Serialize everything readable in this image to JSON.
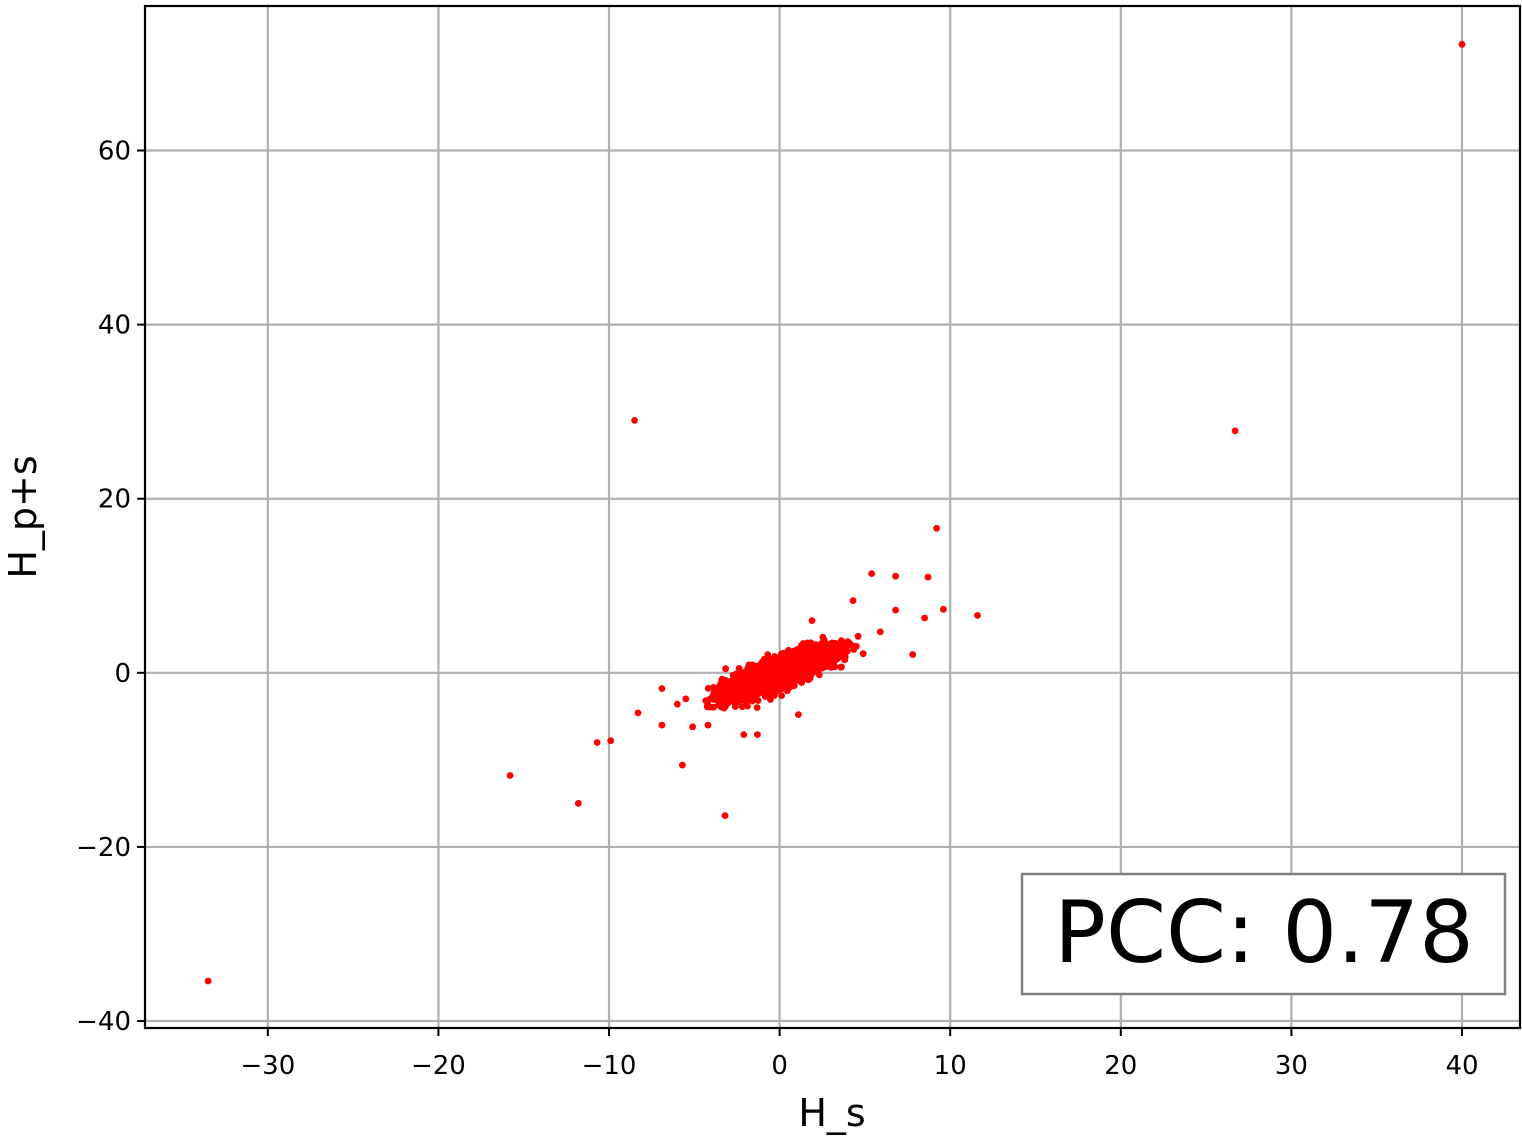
{
  "chart_data": {
    "type": "scatter",
    "title": "",
    "xlabel": "H_s",
    "ylabel": "H_p+s",
    "xlim": [
      -37.2,
      43.4
    ],
    "ylim": [
      -40.8,
      76.6
    ],
    "xticks": [
      -30,
      -20,
      -10,
      0,
      10,
      20,
      30,
      40
    ],
    "yticks": [
      -40,
      -20,
      0,
      20,
      40,
      60
    ],
    "grid": true,
    "marker_color": "#ff0000",
    "annotation": {
      "text": "PCC: 0.78",
      "placement": "bottom-right"
    },
    "series": [
      {
        "points": [
          [
            40.0,
            72.2
          ],
          [
            26.7,
            27.8
          ],
          [
            -8.5,
            29.0
          ],
          [
            -33.5,
            -35.4
          ],
          [
            -15.8,
            -11.8
          ],
          [
            -11.8,
            -15.0
          ],
          [
            -10.7,
            -8.0
          ],
          [
            -9.9,
            -7.8
          ],
          [
            -5.7,
            -10.6
          ],
          [
            -3.2,
            -16.4
          ],
          [
            -6.9,
            -1.8
          ],
          [
            -8.3,
            -4.6
          ],
          [
            -6.9,
            -6.0
          ],
          [
            -5.1,
            -6.2
          ],
          [
            -4.2,
            -6.0
          ],
          [
            -2.1,
            -7.1
          ],
          [
            -1.3,
            -7.1
          ],
          [
            1.1,
            -4.8
          ],
          [
            -6.0,
            -3.6
          ],
          [
            -5.5,
            -3.0
          ],
          [
            9.2,
            16.6
          ],
          [
            5.4,
            11.4
          ],
          [
            6.8,
            11.1
          ],
          [
            8.7,
            11.0
          ],
          [
            4.3,
            8.3
          ],
          [
            6.8,
            7.2
          ],
          [
            9.6,
            7.3
          ],
          [
            11.6,
            6.6
          ],
          [
            8.5,
            6.3
          ],
          [
            1.9,
            6.0
          ],
          [
            5.9,
            4.7
          ],
          [
            7.8,
            2.1
          ],
          [
            4.9,
            2.2
          ],
          [
            4.6,
            4.2
          ]
        ],
        "cluster": {
          "count": 2400,
          "center": [
            0.0,
            0.0
          ],
          "sd_x": 1.6,
          "slope": 0.75,
          "residual_sd": 0.8,
          "x_range": [
            -4.5,
            4.5
          ],
          "y_range": [
            -4.2,
            4.2
          ]
        }
      }
    ]
  }
}
